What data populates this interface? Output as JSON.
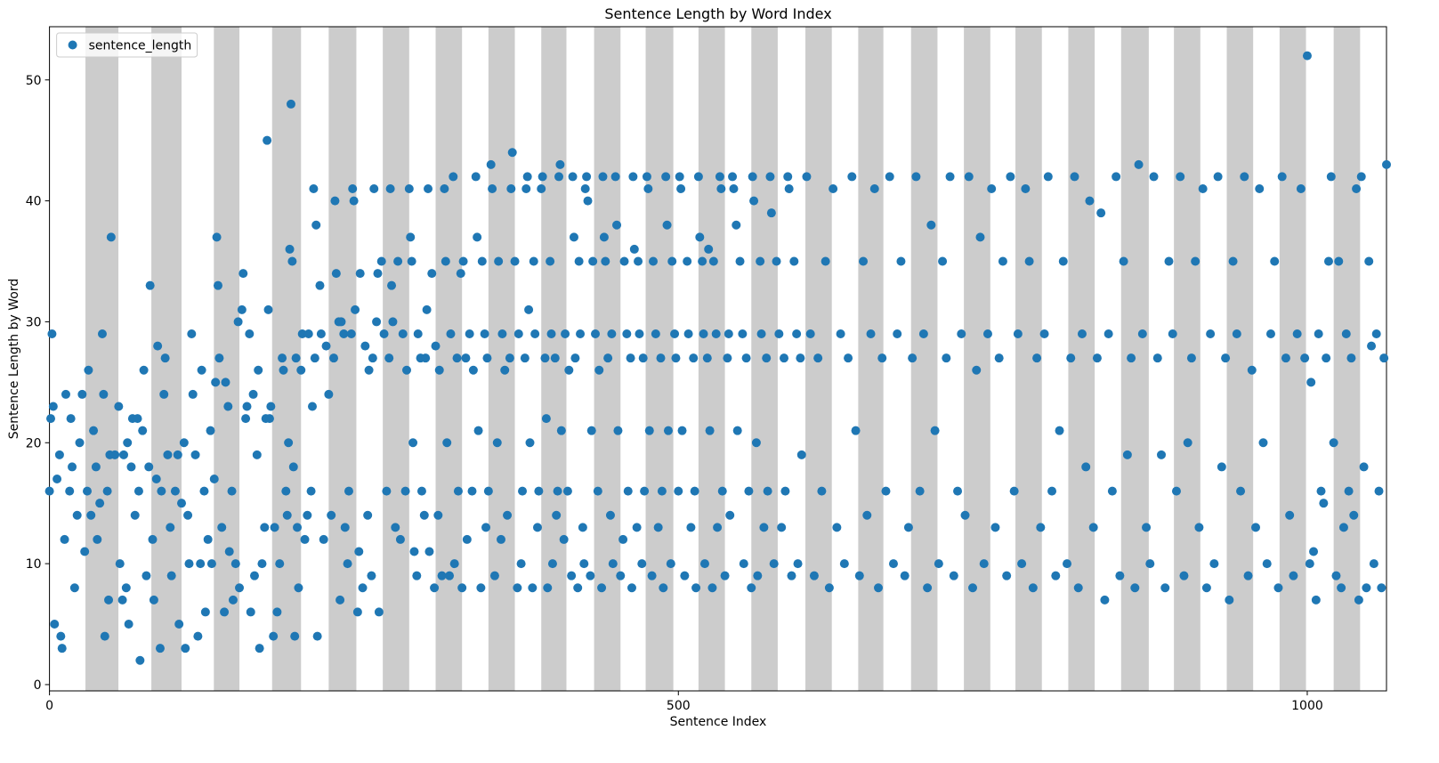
{
  "chart_data": {
    "type": "scatter",
    "title": "Sentence Length by Word Index",
    "xlabel": "Sentence Index",
    "ylabel": "Sentence Length by Word",
    "xlim": [
      0,
      1063
    ],
    "ylim": [
      -0.52,
      54.4
    ],
    "xticks": [
      0,
      500,
      1000
    ],
    "yticks": [
      0,
      10,
      20,
      30,
      40,
      50
    ],
    "legend": "upper left",
    "shade_color": "#cccccc",
    "shaded_regions": [
      [
        28.6,
        54.8
      ],
      [
        81,
        105
      ],
      [
        130.7,
        151
      ],
      [
        177,
        200
      ],
      [
        222,
        244
      ],
      [
        265,
        286
      ],
      [
        307,
        328
      ],
      [
        349,
        370
      ],
      [
        391,
        411
      ],
      [
        433,
        454
      ],
      [
        474,
        496
      ],
      [
        516,
        537
      ],
      [
        558,
        579
      ],
      [
        601,
        622
      ],
      [
        643,
        663
      ],
      [
        685,
        706
      ],
      [
        727,
        748
      ],
      [
        768,
        789
      ],
      [
        810,
        831
      ],
      [
        852,
        874
      ],
      [
        894,
        915
      ],
      [
        936,
        957
      ],
      [
        978,
        999
      ],
      [
        1021,
        1042
      ]
    ],
    "x": [
      0,
      1,
      2,
      3,
      4,
      6,
      8,
      9,
      10,
      12,
      13,
      16,
      17,
      18,
      20,
      22,
      24,
      26,
      28,
      30,
      31,
      33,
      35,
      37,
      38,
      40,
      42,
      43,
      44,
      46,
      47,
      48,
      49,
      52,
      55,
      56,
      58,
      59,
      61,
      62,
      63,
      65,
      66,
      68,
      70,
      71,
      72,
      74,
      75,
      77,
      79,
      80,
      82,
      83,
      85,
      86,
      88,
      89,
      91,
      92,
      94,
      96,
      97,
      100,
      102,
      103,
      105,
      107,
      108,
      110,
      111,
      113,
      114,
      116,
      118,
      120,
      121,
      123,
      124,
      126,
      128,
      129,
      131,
      132,
      133,
      134,
      135,
      137,
      139,
      140,
      142,
      143,
      145,
      146,
      148,
      150,
      151,
      153,
      154,
      156,
      157,
      159,
      160,
      162,
      163,
      165,
      166,
      167,
      169,
      171,
      172,
      173,
      174,
      175,
      176,
      178,
      179,
      181,
      183,
      185,
      186,
      188,
      189,
      190,
      191,
      192,
      193,
      194,
      195,
      196,
      197,
      198,
      200,
      201,
      203,
      205,
      206,
      208,
      209,
      210,
      211,
      212,
      213,
      215,
      216,
      218,
      220,
      222,
      224,
      226,
      227,
      228,
      230,
      231,
      232,
      234,
      235,
      237,
      238,
      240,
      241,
      242,
      243,
      245,
      246,
      247,
      249,
      251,
      253,
      254,
      256,
      257,
      258,
      260,
      261,
      262,
      264,
      266,
      268,
      270,
      271,
      272,
      273,
      275,
      277,
      279,
      281,
      283,
      284,
      286,
      287,
      288,
      289,
      290,
      292,
      293,
      295,
      296,
      298,
      299,
      300,
      301,
      302,
      304,
      306,
      307,
      309,
      310,
      312,
      314,
      315,
      316,
      318,
      319,
      321,
      322,
      324,
      325,
      327,
      328,
      329,
      331,
      332,
      334,
      336,
      337,
      339,
      340,
      341,
      343,
      344,
      346,
      347,
      348,
      349,
      351,
      352,
      354,
      356,
      357,
      359,
      360,
      362,
      364,
      366,
      367,
      368,
      370,
      372,
      373,
      375,
      376,
      378,
      379,
      380,
      381,
      382,
      384,
      385,
      386,
      388,
      389,
      391,
      392,
      394,
      395,
      396,
      398,
      399,
      400,
      402,
      403,
      404,
      405,
      406,
      407,
      409,
      410,
      412,
      413,
      415,
      416,
      417,
      418,
      420,
      421,
      422,
      424,
      425,
      426,
      427,
      428,
      430,
      431,
      432,
      434,
      436,
      437,
      439,
      440,
      441,
      442,
      444,
      446,
      447,
      448,
      450,
      451,
      452,
      454,
      456,
      457,
      459,
      460,
      462,
      463,
      464,
      465,
      467,
      468,
      469,
      471,
      472,
      473,
      475,
      476,
      477,
      479,
      480,
      482,
      484,
      486,
      487,
      488,
      490,
      491,
      492,
      494,
      495,
      497,
      498,
      500,
      501,
      502,
      503,
      505,
      507,
      508,
      510,
      512,
      513,
      514,
      516,
      517,
      519,
      520,
      521,
      523,
      524,
      525,
      527,
      528,
      530,
      531,
      533,
      534,
      535,
      537,
      539,
      540,
      541,
      543,
      544,
      546,
      547,
      549,
      551,
      552,
      554,
      556,
      558,
      559,
      560,
      562,
      563,
      565,
      566,
      568,
      570,
      571,
      573,
      574,
      576,
      578,
      580,
      582,
      584,
      585,
      587,
      588,
      590,
      592,
      594,
      595,
      597,
      598,
      602,
      605,
      608,
      611,
      614,
      617,
      620,
      623,
      626,
      629,
      632,
      635,
      638,
      641,
      644,
      647,
      650,
      653,
      656,
      659,
      662,
      665,
      668,
      671,
      674,
      677,
      680,
      683,
      686,
      689,
      692,
      695,
      698,
      701,
      704,
      707,
      710,
      713,
      716,
      719,
      722,
      725,
      728,
      731,
      734,
      737,
      740,
      743,
      746,
      749,
      752,
      755,
      758,
      761,
      764,
      767,
      770,
      773,
      776,
      779,
      782,
      785,
      788,
      791,
      794,
      797,
      800,
      803,
      806,
      809,
      812,
      815,
      818,
      821,
      824,
      827,
      830,
      833,
      836,
      839,
      842,
      845,
      848,
      851,
      854,
      857,
      860,
      863,
      866,
      869,
      872,
      875,
      878,
      881,
      884,
      887,
      890,
      893,
      896,
      899,
      902,
      905,
      908,
      911,
      914,
      917,
      920,
      923,
      926,
      929,
      932,
      935,
      938,
      941,
      944,
      947,
      950,
      953,
      956,
      959,
      962,
      965,
      968,
      971,
      974,
      977,
      980,
      983,
      986,
      989,
      992,
      995,
      998,
      1000,
      1002,
      1003,
      1005,
      1007,
      1009,
      1011,
      1013,
      1015,
      1017,
      1019,
      1021,
      1023,
      1025,
      1027,
      1029,
      1031,
      1033,
      1035,
      1037,
      1039,
      1041,
      1043,
      1045,
      1047,
      1049,
      1051,
      1053,
      1055,
      1057,
      1059,
      1061,
      1063
    ],
    "series": [
      {
        "name": "sentence_length",
        "color": "#1f77b4",
        "values": [
          16,
          22,
          29,
          23,
          5,
          17,
          19,
          4,
          3,
          12,
          24,
          16,
          22,
          18,
          8,
          14,
          20,
          24,
          11,
          16,
          26,
          14,
          21,
          18,
          12,
          15,
          29,
          24,
          4,
          16,
          7,
          19,
          37,
          19,
          23,
          10,
          7,
          19,
          8,
          20,
          5,
          18,
          22,
          14,
          22,
          16,
          2,
          21,
          26,
          9,
          18,
          33,
          12,
          7,
          17,
          28,
          3,
          16,
          24,
          27,
          19,
          13,
          9,
          16,
          19,
          5,
          15,
          20,
          3,
          14,
          10,
          29,
          24,
          19,
          4,
          10,
          26,
          16,
          6,
          12,
          21,
          10,
          17,
          25,
          37,
          33,
          27,
          13,
          6,
          25,
          23,
          11,
          16,
          7,
          10,
          30,
          8,
          31,
          34,
          22,
          23,
          29,
          6,
          24,
          9,
          19,
          26,
          3,
          10,
          13,
          22,
          45,
          31,
          22,
          23,
          4,
          13,
          6,
          10,
          27,
          26,
          16,
          14,
          20,
          36,
          48,
          35,
          18,
          4,
          27,
          13,
          8,
          26,
          29,
          12,
          14,
          29,
          16,
          23,
          41,
          27,
          38,
          4,
          33,
          29,
          12,
          28,
          24,
          14,
          27,
          40,
          34,
          30,
          7,
          30,
          29,
          13,
          10,
          16,
          29,
          41,
          40,
          31,
          6,
          11,
          34,
          8,
          28,
          14,
          26,
          9,
          27,
          41,
          30,
          34,
          6,
          35,
          29,
          16,
          27,
          41,
          33,
          30,
          13,
          35,
          12,
          29,
          16,
          26,
          41,
          37,
          35,
          20,
          11,
          9,
          29,
          27,
          16,
          14,
          27,
          31,
          41,
          11,
          34,
          8,
          28,
          14,
          26,
          9,
          41,
          35,
          20,
          9,
          29,
          42,
          10,
          27,
          16,
          34,
          8,
          35,
          27,
          12,
          29,
          16,
          26,
          42,
          37,
          21,
          8,
          35,
          29,
          13,
          27,
          16,
          43,
          41,
          9,
          20,
          35,
          12,
          29,
          26,
          14,
          27,
          41,
          44,
          35,
          8,
          29,
          10,
          16,
          27,
          41,
          42,
          31,
          20,
          8,
          35,
          29,
          13,
          16,
          41,
          42,
          27,
          22,
          8,
          35,
          29,
          10,
          27,
          14,
          16,
          42,
          43,
          21,
          12,
          29,
          16,
          26,
          9,
          42,
          37,
          27,
          8,
          35,
          29,
          13,
          10,
          41,
          42,
          40,
          9,
          21,
          35,
          29,
          16,
          26,
          8,
          42,
          37,
          35,
          27,
          14,
          29,
          10,
          42,
          38,
          21,
          9,
          12,
          35,
          29,
          16,
          27,
          8,
          42,
          36,
          13,
          35,
          29,
          10,
          27,
          16,
          42,
          41,
          21,
          9,
          35,
          29,
          13,
          27,
          16,
          8,
          42,
          38,
          21,
          10,
          35,
          29,
          27,
          16,
          42,
          41,
          21,
          9,
          35,
          29,
          13,
          27,
          16,
          8,
          42,
          37,
          35,
          29,
          10,
          27,
          36,
          21,
          8,
          35,
          29,
          13,
          42,
          41,
          16,
          9,
          27,
          29,
          14,
          42,
          41,
          38,
          21,
          35,
          29,
          10,
          27,
          16,
          8,
          42,
          40,
          20,
          9,
          35,
          29,
          13,
          27,
          16,
          42,
          39,
          10,
          35,
          29,
          13,
          27,
          16,
          42,
          41,
          9,
          35,
          29,
          10,
          27,
          19,
          42,
          29,
          9,
          27,
          16,
          35,
          8,
          41,
          13,
          29,
          10,
          27,
          42,
          21,
          9,
          35,
          14,
          29,
          41,
          8,
          27,
          16,
          42,
          10,
          29,
          35,
          9,
          13,
          27,
          42,
          16,
          29,
          8,
          38,
          21,
          10,
          35,
          27,
          42,
          9,
          16,
          29,
          14,
          42,
          8,
          26,
          37,
          10,
          29,
          41,
          13,
          27,
          35,
          9,
          42,
          16,
          29,
          10,
          41,
          35,
          8,
          27,
          13,
          29,
          42,
          16,
          9,
          21,
          35,
          10,
          27,
          42,
          8,
          29,
          18,
          40,
          13,
          27,
          39,
          7,
          29,
          16,
          42,
          9,
          35,
          19,
          27,
          8,
          43,
          29,
          13,
          10,
          42,
          27,
          19,
          8,
          35,
          29,
          16,
          42,
          9,
          20,
          27,
          35,
          13,
          41,
          8,
          29,
          10,
          42,
          18,
          27,
          7,
          35,
          29,
          16,
          42,
          9,
          26,
          13,
          41,
          20,
          10,
          29,
          35,
          8,
          42,
          27,
          14,
          9,
          29,
          41,
          27,
          52,
          10,
          25,
          11,
          7,
          29,
          16,
          15,
          27,
          35,
          42,
          20,
          9,
          35,
          8,
          13,
          29,
          16,
          27,
          14,
          41,
          7,
          42,
          18,
          8,
          35,
          28,
          10,
          29,
          16,
          8,
          27,
          43
        ]
      }
    ]
  }
}
